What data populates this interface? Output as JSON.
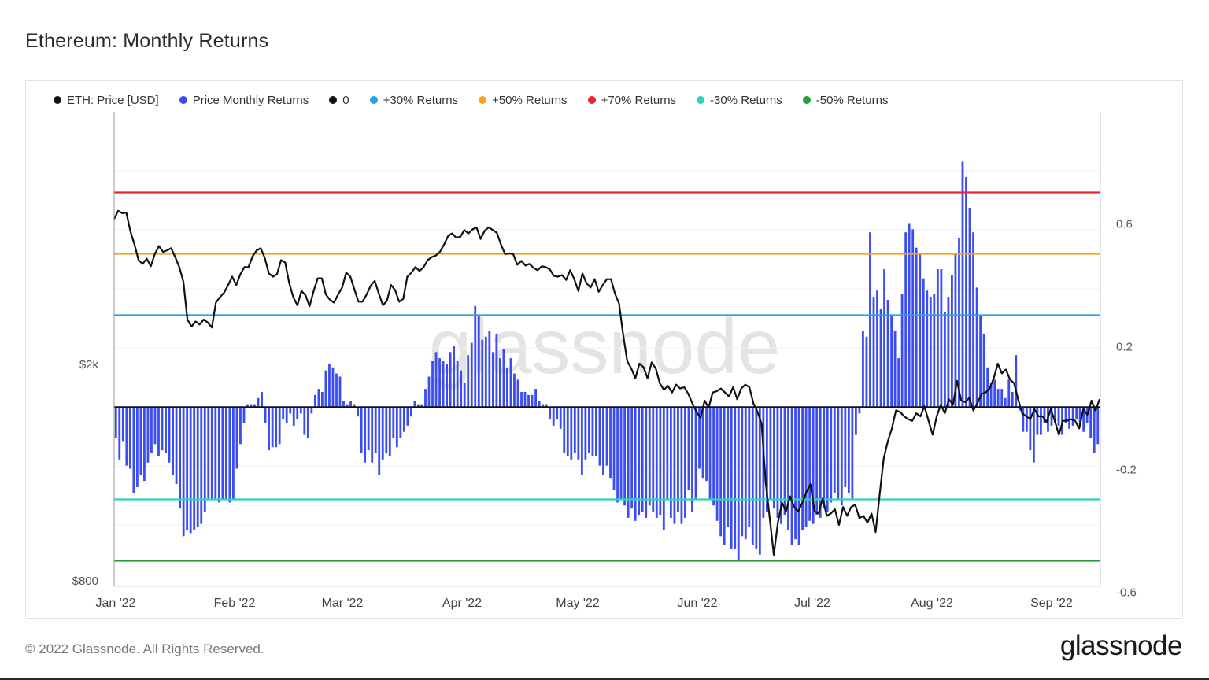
{
  "page": {
    "title": "Ethereum: Monthly Returns",
    "footer": "© 2022 Glassnode. All Rights Reserved.",
    "brand": "glassnode",
    "watermark": "glassnode"
  },
  "chart_data": {
    "type": "bar",
    "title": "Ethereum: Monthly Returns",
    "legend": [
      {
        "label": "ETH: Price [USD]",
        "color": "#111111"
      },
      {
        "label": "Price Monthly Returns",
        "color": "#3b4cf0"
      },
      {
        "label": "0",
        "color": "#111111"
      },
      {
        "label": "+30% Returns",
        "color": "#1ea7e4"
      },
      {
        "label": "+50% Returns",
        "color": "#f5a31a"
      },
      {
        "label": "+70% Returns",
        "color": "#e8262d"
      },
      {
        "label": "-30% Returns",
        "color": "#2fd4b4"
      },
      {
        "label": "-50% Returns",
        "color": "#2a9d3a"
      }
    ],
    "x_ticks": [
      "Jan '22",
      "Feb '22",
      "Mar '22",
      "Apr '22",
      "May '22",
      "Jun '22",
      "Jul '22",
      "Aug '22",
      "Sep '22"
    ],
    "left_axis": {
      "label": "ETH: Price [USD]",
      "ticks": [
        "$2k",
        "$800"
      ],
      "tick_values": [
        2000,
        800
      ],
      "scale": "log"
    },
    "right_axis": {
      "label": "Price Monthly Returns",
      "ticks": [
        "0.6",
        "0.2",
        "-0.2",
        "-0.6"
      ],
      "tick_values": [
        0.6,
        0.2,
        -0.2,
        -0.6
      ],
      "ylim": [
        -0.6,
        0.9
      ]
    },
    "reference_lines": [
      {
        "name": "+70% Returns",
        "value": 0.7,
        "color": "#e8262d"
      },
      {
        "name": "+50% Returns",
        "value": 0.5,
        "color": "#f5a31a"
      },
      {
        "name": "+30% Returns",
        "value": 0.3,
        "color": "#1ea7e4"
      },
      {
        "name": "0",
        "value": 0,
        "color": "#111111"
      },
      {
        "name": "-30% Returns",
        "value": -0.3,
        "color": "#2fd4b4"
      },
      {
        "name": "-50% Returns",
        "value": -0.5,
        "color": "#2a9d3a"
      }
    ],
    "series": [
      {
        "name": "Price Monthly Returns",
        "type": "bar",
        "color": "#3b4cf0",
        "values": [
          -0.1,
          -0.17,
          -0.11,
          -0.19,
          -0.2,
          -0.28,
          -0.26,
          -0.22,
          -0.24,
          -0.18,
          -0.15,
          -0.12,
          -0.16,
          -0.14,
          -0.15,
          -0.18,
          -0.22,
          -0.25,
          -0.33,
          -0.42,
          -0.4,
          -0.41,
          -0.4,
          -0.39,
          -0.38,
          -0.34,
          -0.3,
          -0.3,
          -0.3,
          -0.31,
          -0.3,
          -0.3,
          -0.31,
          -0.3,
          -0.2,
          -0.12,
          -0.05,
          0.01,
          0.01,
          0.01,
          0.03,
          0.05,
          -0.05,
          -0.14,
          -0.13,
          -0.13,
          -0.12,
          -0.04,
          -0.05,
          -0.02,
          -0.06,
          -0.04,
          -0.02,
          -0.09,
          -0.1,
          -0.02,
          0.04,
          0.06,
          0.05,
          0.12,
          0.14,
          0.13,
          0.11,
          0.1,
          0.02,
          0.01,
          0.02,
          0.01,
          -0.03,
          -0.15,
          -0.18,
          -0.14,
          -0.18,
          -0.15,
          -0.22,
          -0.17,
          -0.15,
          -0.16,
          -0.1,
          -0.13,
          -0.1,
          -0.08,
          -0.06,
          -0.03,
          0.02,
          0.01,
          0.01,
          0.06,
          0.1,
          0.15,
          0.18,
          0.16,
          0.15,
          0.14,
          0.18,
          0.2,
          0.15,
          0.12,
          0.08,
          0.17,
          0.21,
          0.33,
          0.3,
          0.22,
          0.23,
          0.25,
          0.18,
          0.24,
          0.16,
          0.19,
          0.13,
          0.16,
          0.11,
          0.09,
          0.05,
          0.05,
          0.04,
          0.04,
          0.06,
          0.02,
          0.01,
          0.01,
          -0.04,
          -0.06,
          -0.04,
          -0.07,
          -0.15,
          -0.16,
          -0.17,
          -0.15,
          -0.17,
          -0.22,
          -0.17,
          -0.15,
          -0.16,
          -0.16,
          -0.19,
          -0.22,
          -0.19,
          -0.23,
          -0.27,
          -0.31,
          -0.3,
          -0.32,
          -0.36,
          -0.33,
          -0.37,
          -0.35,
          -0.34,
          -0.36,
          -0.32,
          -0.34,
          -0.36,
          -0.35,
          -0.4,
          -0.3,
          -0.36,
          -0.38,
          -0.34,
          -0.38,
          -0.36,
          -0.27,
          -0.34,
          -0.3,
          -0.2,
          -0.23,
          -0.24,
          -0.3,
          -0.32,
          -0.37,
          -0.42,
          -0.45,
          -0.39,
          -0.46,
          -0.46,
          -0.5,
          -0.42,
          -0.43,
          -0.39,
          -0.45,
          -0.46,
          -0.48,
          -0.36,
          -0.34,
          -0.3,
          -0.33,
          -0.36,
          -0.38,
          -0.35,
          -0.4,
          -0.45,
          -0.43,
          -0.45,
          -0.4,
          -0.39,
          -0.37,
          -0.38,
          -0.35,
          -0.36,
          -0.33,
          -0.34,
          -0.31,
          -0.28,
          -0.3,
          -0.32,
          -0.26,
          -0.28,
          -0.3,
          -0.09,
          -0.02,
          0.25,
          0.23,
          0.57,
          0.36,
          0.38,
          0.32,
          0.45,
          0.35,
          0.3,
          0.25,
          0.16,
          0.37,
          0.57,
          0.6,
          0.58,
          0.52,
          0.5,
          0.42,
          0.38,
          0.36,
          0.37,
          0.45,
          0.45,
          0.31,
          0.36,
          0.43,
          0.5,
          0.55,
          0.8,
          0.75,
          0.65,
          0.57,
          0.39,
          0.3,
          0.24,
          0.13,
          0.08,
          0.09,
          0.06,
          0.06,
          0.03,
          0.09,
          0.05,
          0.17,
          -0.01,
          -0.08,
          -0.08,
          -0.14,
          -0.18,
          -0.09,
          -0.09,
          -0.05,
          -0.08,
          -0.06,
          -0.05,
          -0.06,
          -0.09,
          -0.05,
          -0.07,
          -0.06,
          -0.04,
          -0.06,
          -0.08,
          -0.05,
          -0.1,
          -0.15,
          -0.12
        ]
      },
      {
        "name": "ETH: Price [USD]",
        "type": "line",
        "color": "#111111",
        "values": [
          3690,
          3820,
          3780,
          3790,
          3500,
          3310,
          3100,
          3050,
          3120,
          3020,
          3180,
          3290,
          3210,
          3230,
          3260,
          3140,
          3010,
          2830,
          2410,
          2340,
          2390,
          2360,
          2410,
          2380,
          2330,
          2590,
          2650,
          2700,
          2790,
          2890,
          2790,
          2920,
          3010,
          3010,
          3150,
          3230,
          3260,
          3130,
          2930,
          2890,
          2920,
          3100,
          3070,
          2810,
          2650,
          2560,
          2720,
          2670,
          2550,
          2720,
          2870,
          2870,
          2680,
          2620,
          2590,
          2680,
          2760,
          2940,
          2890,
          2740,
          2600,
          2600,
          2680,
          2780,
          2840,
          2690,
          2560,
          2610,
          2790,
          2730,
          2600,
          2630,
          2890,
          2940,
          3010,
          2960,
          3010,
          3100,
          3140,
          3160,
          3210,
          3310,
          3430,
          3470,
          3410,
          3420,
          3520,
          3470,
          3530,
          3560,
          3390,
          3510,
          3560,
          3520,
          3480,
          3310,
          3180,
          3190,
          3180,
          3040,
          3090,
          3030,
          3050,
          3000,
          2970,
          3020,
          3010,
          2980,
          2900,
          2890,
          2910,
          2850,
          2970,
          2860,
          2720,
          2930,
          2810,
          2760,
          2860,
          2710,
          2790,
          2860,
          2860,
          2690,
          2580,
          2260,
          2020,
          1960,
          1880,
          2000,
          1970,
          1880,
          2010,
          1960,
          1840,
          1790,
          1820,
          1770,
          1830,
          1800,
          1810,
          1760,
          1690,
          1630,
          1590,
          1710,
          1660,
          1770,
          1780,
          1800,
          1770,
          1740,
          1810,
          1720,
          1800,
          1830,
          1810,
          1690,
          1630,
          1550,
          1210,
          1040,
          890,
          1020,
          1110,
          1070,
          1140,
          1090,
          1070,
          1110,
          1160,
          1200,
          1070,
          1060,
          1130,
          1050,
          1060,
          1080,
          1010,
          1090,
          1050,
          1090,
          1100,
          1040,
          1050,
          1020,
          1060,
          980,
          1150,
          1340,
          1440,
          1520,
          1640,
          1630,
          1600,
          1580,
          1570,
          1620,
          1600,
          1670,
          1570,
          1480,
          1600,
          1680,
          1620,
          1720,
          1680,
          1860,
          1710,
          1700,
          1730,
          1640,
          1690,
          1760,
          1770,
          1800,
          1880,
          2000,
          1920,
          1950,
          1870,
          1840,
          1720,
          1620,
          1600,
          1580,
          1650,
          1600,
          1600,
          1560,
          1650,
          1570,
          1480,
          1570,
          1570,
          1580,
          1570,
          1520,
          1650,
          1610,
          1710,
          1640,
          1720
        ],
        "right_axis_approx": [
          -0.05,
          0.02,
          0.0
        ]
      }
    ],
    "x_range": [
      "Jan '22",
      "Sep '22"
    ]
  }
}
